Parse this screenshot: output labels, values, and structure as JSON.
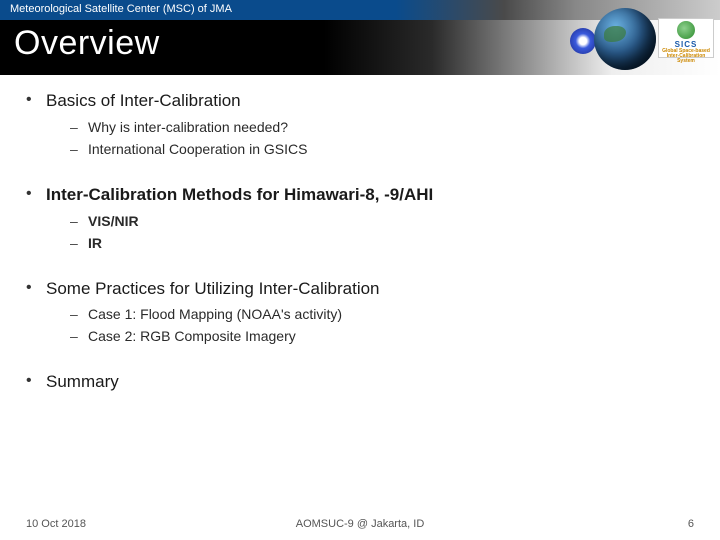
{
  "header": {
    "org": "Meteorological Satellite Center (MSC) of JMA"
  },
  "title": "Overview",
  "logos": {
    "swirl_icon": "swirl",
    "gsics_top": "SICS",
    "gsics_line1": "Global Space-based",
    "gsics_line2": "Inter-Calibration System"
  },
  "sections": [
    {
      "label": "Basics of Inter-Calibration",
      "bold": false,
      "subs": [
        {
          "label": "Why is inter-calibration needed?",
          "bold": false
        },
        {
          "label": "International Cooperation in GSICS",
          "bold": false
        }
      ]
    },
    {
      "label": "Inter-Calibration Methods for Himawari-8, -9/AHI",
      "bold": true,
      "subs": [
        {
          "label": "VIS/NIR",
          "bold": true
        },
        {
          "label": "IR",
          "bold": true
        }
      ]
    },
    {
      "label": "Some Practices for Utilizing Inter-Calibration",
      "bold": false,
      "subs": [
        {
          "label": "Case 1: Flood Mapping (NOAA's activity)",
          "bold": false
        },
        {
          "label": "Case 2: RGB Composite Imagery",
          "bold": false
        }
      ]
    },
    {
      "label": "Summary",
      "bold": false,
      "subs": []
    }
  ],
  "footer": {
    "date": "10 Oct 2018",
    "venue": "AOMSUC-9 @ Jakarta, ID",
    "page": "6"
  },
  "colors": {
    "header_blue": "#0a4b8c",
    "title_black": "#000000",
    "text": "#1a1a1a",
    "subtext": "#2a2a2a",
    "footer_text": "#555555"
  }
}
